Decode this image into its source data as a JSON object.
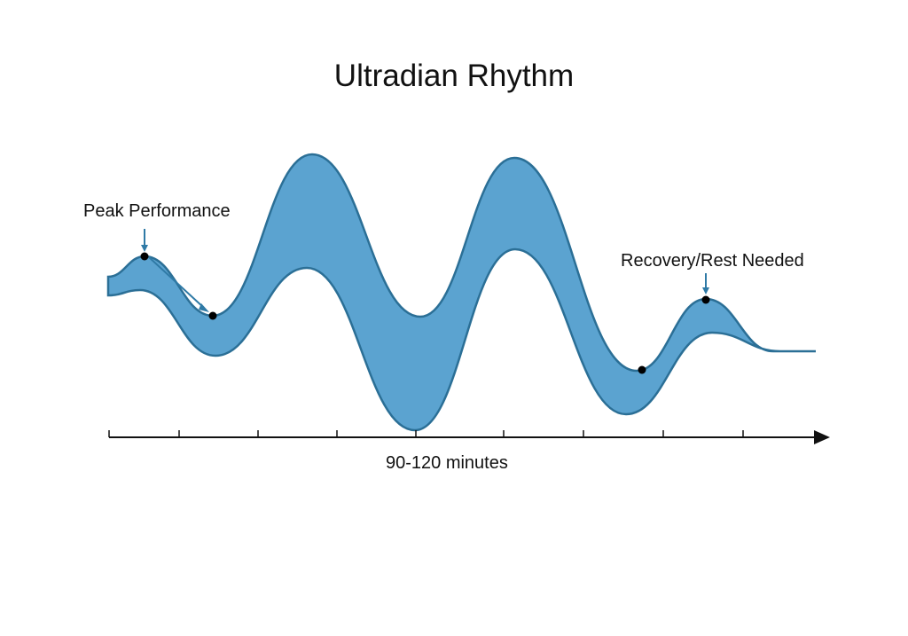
{
  "title": "Ultradian Rhythm",
  "annotations": {
    "peak": "Peak Performance",
    "recovery": "Recovery/Rest Needed"
  },
  "axis": {
    "label": "90-120 minutes"
  },
  "colors": {
    "band_fill": "#5ba3d0",
    "band_stroke": "#2b6f96",
    "arrow": "#2f7aa6",
    "axis": "#111111",
    "marker": "#000000"
  }
}
